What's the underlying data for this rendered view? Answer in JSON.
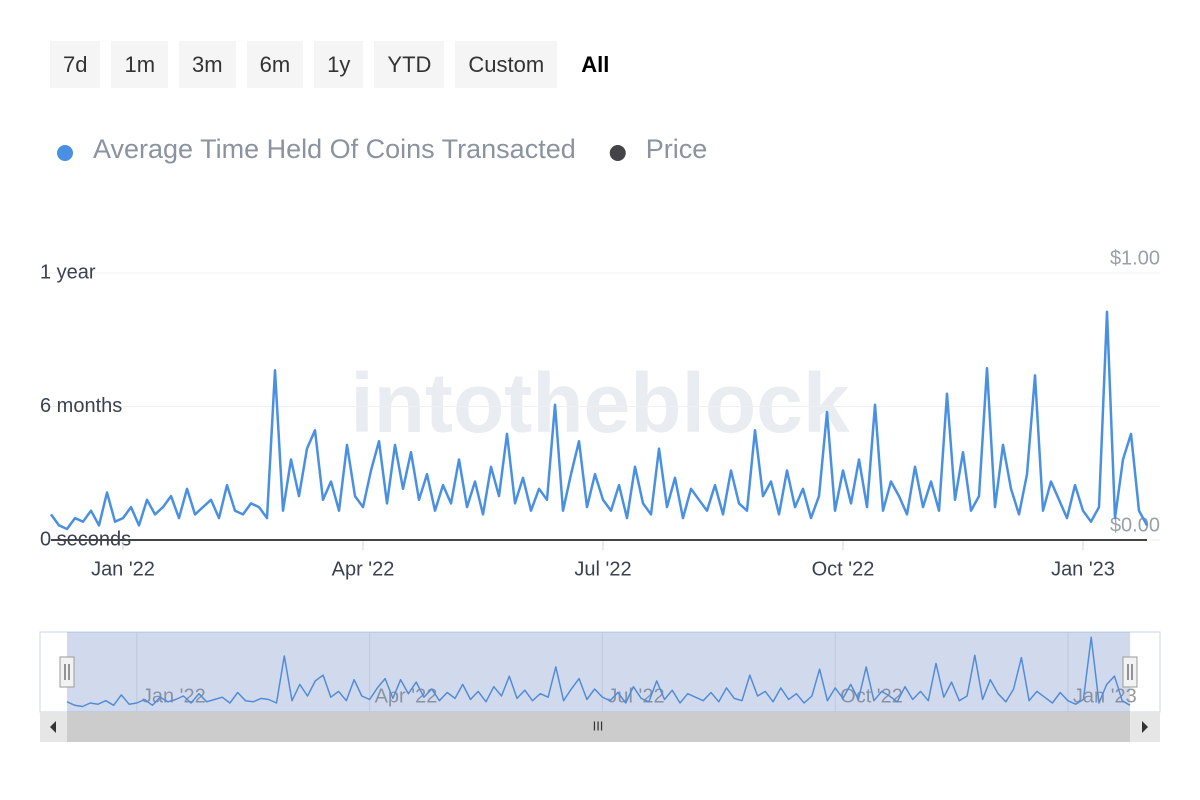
{
  "range_selector": {
    "buttons": [
      "7d",
      "1m",
      "3m",
      "6m",
      "1y",
      "YTD",
      "Custom",
      "All"
    ],
    "selected": 7
  },
  "watermark": "intotheblock",
  "chart_data": {
    "type": "line",
    "categories": [
      null,
      null,
      null,
      null,
      null,
      null,
      null,
      null,
      null,
      "Jan '22",
      null,
      null,
      null,
      null,
      null,
      null,
      null,
      null,
      null,
      null,
      null,
      null,
      null,
      null,
      null,
      null,
      null,
      null,
      null,
      null,
      null,
      null,
      null,
      null,
      null,
      null,
      null,
      null,
      null,
      "Apr '22",
      null,
      null,
      null,
      null,
      null,
      null,
      null,
      null,
      null,
      null,
      null,
      null,
      null,
      null,
      null,
      null,
      null,
      null,
      null,
      null,
      null,
      null,
      null,
      null,
      null,
      null,
      null,
      null,
      null,
      "Jul '22",
      null,
      null,
      null,
      null,
      null,
      null,
      null,
      null,
      null,
      null,
      null,
      null,
      null,
      null,
      null,
      null,
      null,
      null,
      null,
      null,
      null,
      null,
      null,
      null,
      null,
      null,
      null,
      null,
      null,
      "Oct '22",
      null,
      null,
      null,
      null,
      null,
      null,
      null,
      null,
      null,
      null,
      null,
      null,
      null,
      null,
      null,
      null,
      null,
      null,
      null,
      null,
      null,
      null,
      null,
      null,
      null,
      null,
      null,
      null,
      null,
      "Jan '23",
      null,
      null,
      null,
      null,
      null,
      null,
      null,
      null
    ],
    "series": [
      {
        "name": "Average Time Held Of Coins Transacted",
        "color": "#4a90e2",
        "values": [
          35,
          20,
          15,
          30,
          25,
          40,
          20,
          65,
          25,
          30,
          45,
          20,
          55,
          35,
          45,
          60,
          30,
          70,
          35,
          45,
          55,
          30,
          75,
          40,
          35,
          50,
          45,
          30,
          232,
          40,
          110,
          60,
          125,
          150,
          55,
          80,
          40,
          130,
          60,
          45,
          95,
          135,
          50,
          130,
          70,
          120,
          55,
          90,
          40,
          75,
          50,
          110,
          45,
          80,
          35,
          100,
          60,
          145,
          50,
          85,
          40,
          70,
          55,
          185,
          40,
          90,
          135,
          45,
          90,
          55,
          40,
          75,
          30,
          100,
          50,
          35,
          125,
          45,
          85,
          30,
          70,
          55,
          40,
          75,
          35,
          95,
          50,
          40,
          150,
          60,
          80,
          35,
          95,
          45,
          70,
          30,
          60,
          175,
          40,
          95,
          50,
          110,
          45,
          185,
          40,
          80,
          60,
          35,
          100,
          45,
          80,
          40,
          200,
          55,
          120,
          40,
          60,
          235,
          45,
          130,
          70,
          35,
          90,
          225,
          40,
          80,
          55,
          30,
          75,
          40,
          25,
          45,
          312,
          30,
          110,
          145,
          40,
          20
        ]
      },
      {
        "name": "Price",
        "color": "#434348",
        "axis": "y2",
        "values": [
          0,
          0,
          0,
          0,
          0,
          0,
          0,
          0,
          0,
          0,
          0,
          0,
          0,
          0,
          0,
          0,
          0,
          0,
          0,
          0,
          0,
          0,
          0,
          0,
          0,
          0,
          0,
          0,
          0,
          0,
          0,
          0,
          0,
          0,
          0,
          0,
          0,
          0,
          0,
          0,
          0,
          0,
          0,
          0,
          0,
          0,
          0,
          0,
          0,
          0,
          0,
          0,
          0,
          0,
          0,
          0,
          0,
          0,
          0,
          0,
          0,
          0,
          0,
          0,
          0,
          0,
          0,
          0,
          0,
          0,
          0,
          0,
          0,
          0,
          0,
          0,
          0,
          0,
          0,
          0,
          0,
          0,
          0,
          0,
          0,
          0,
          0,
          0,
          0,
          0,
          0,
          0,
          0,
          0,
          0,
          0,
          0,
          0,
          0,
          0,
          0,
          0,
          0,
          0,
          0,
          0,
          0,
          0,
          0,
          0,
          0,
          0,
          0,
          0,
          0,
          0,
          0,
          0,
          0,
          0,
          0,
          0,
          0,
          0,
          0,
          0,
          0,
          0,
          0,
          0,
          0,
          0,
          0,
          0,
          0,
          0,
          0,
          0
        ]
      }
    ],
    "ylim": [
      0,
      365
    ],
    "yticks": [
      {
        "value": 0,
        "label": "0 seconds"
      },
      {
        "value": 182.5,
        "label": "6 months"
      },
      {
        "value": 365,
        "label": "1 year"
      }
    ],
    "y2lim": [
      0,
      1
    ],
    "y2ticks": [
      {
        "value": 0,
        "label": "$0.00"
      },
      {
        "value": 1,
        "label": "$1.00"
      }
    ],
    "grid": true
  }
}
